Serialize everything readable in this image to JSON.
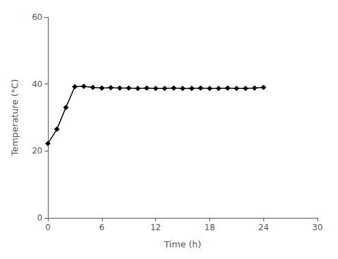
{
  "chart_data": {
    "type": "line",
    "x": [
      0,
      1,
      2,
      3,
      4,
      5,
      6,
      7,
      8,
      9,
      10,
      11,
      12,
      13,
      14,
      15,
      16,
      17,
      18,
      19,
      20,
      21,
      22,
      23,
      24
    ],
    "values": [
      22.2,
      26.5,
      33.0,
      39.2,
      39.3,
      39.0,
      38.8,
      38.9,
      38.8,
      38.8,
      38.7,
      38.8,
      38.7,
      38.7,
      38.8,
      38.7,
      38.7,
      38.8,
      38.7,
      38.7,
      38.8,
      38.7,
      38.7,
      38.8,
      39.0
    ],
    "xlabel": "Time (h)",
    "ylabel": "Temperature (°C)",
    "xlim": [
      0,
      30
    ],
    "ylim": [
      0,
      60
    ],
    "xticks": [
      0,
      6,
      12,
      18,
      24,
      30
    ],
    "yticks": [
      0,
      20,
      40,
      60
    ],
    "color": "#000000",
    "marker": "diamond",
    "grid": false
  }
}
